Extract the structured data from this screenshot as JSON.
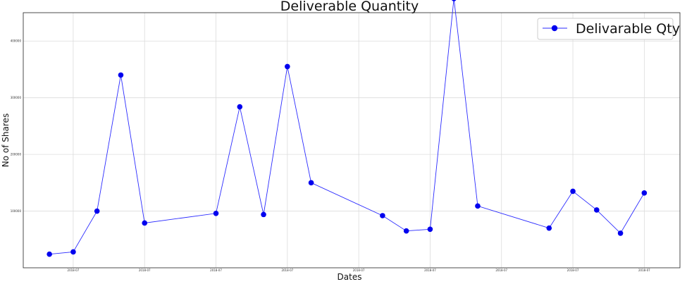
{
  "chart_data": {
    "type": "line",
    "title": "Deliverable Quantity",
    "xlabel": "Dates",
    "ylabel": "No of Shares",
    "legend": {
      "placement": "top-right",
      "entries": [
        "Delivarable Qty"
      ]
    },
    "grid": true,
    "ylim": [
      0,
      450000
    ],
    "yticks": [
      100000,
      200000,
      300000,
      400000
    ],
    "ytick_labels": [
      "100000",
      "200000",
      "300000",
      "400000"
    ],
    "xticks_index": [
      1,
      4,
      7,
      10,
      13,
      16,
      19,
      22,
      25
    ],
    "xtick_labels": [
      "2018-07",
      "2018-07",
      "2018-07",
      "2018-07",
      "2018-07",
      "2018-07",
      "2018-07",
      "2018-07",
      "2018-07"
    ],
    "x_index": [
      0,
      1,
      2,
      3,
      4,
      7,
      8,
      9,
      10,
      11,
      14,
      15,
      16,
      17,
      18,
      21,
      22,
      23,
      24,
      25
    ],
    "series": [
      {
        "name": "Delivarable Qty",
        "color": "#0000ee",
        "values": [
          24000,
          28000,
          100000,
          340000,
          79000,
          96000,
          284000,
          94000,
          355000,
          150000,
          92000,
          65000,
          68000,
          475000,
          109000,
          70000,
          135000,
          102000,
          61000,
          132000
        ]
      }
    ]
  }
}
